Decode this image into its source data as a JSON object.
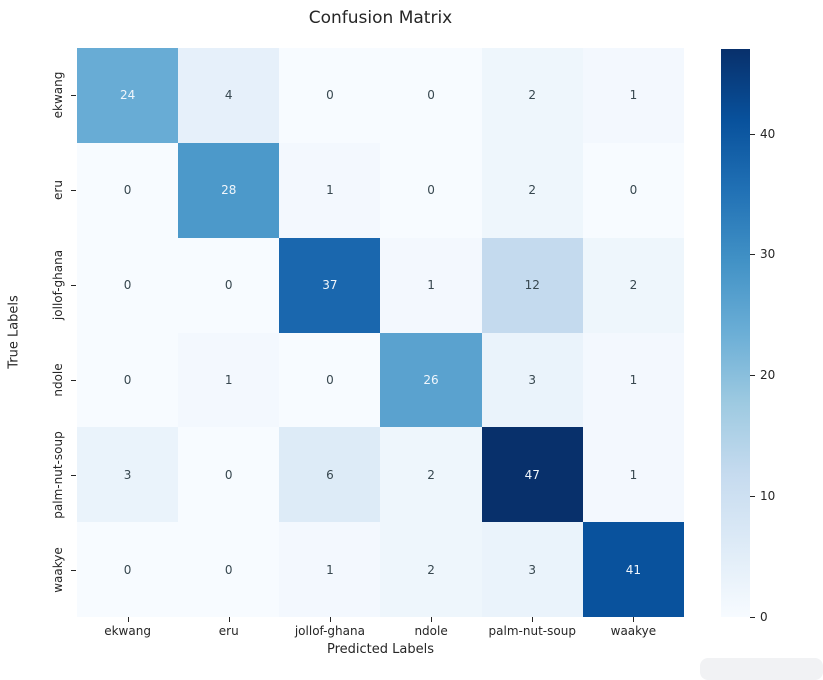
{
  "chart_data": {
    "type": "heatmap",
    "title": "Confusion Matrix",
    "xlabel": "Predicted Labels",
    "ylabel": "True Labels",
    "x_categories": [
      "ekwang",
      "eru",
      "jollof-ghana",
      "ndole",
      "palm-nut-soup",
      "waakye"
    ],
    "y_categories": [
      "ekwang",
      "eru",
      "jollof-ghana",
      "ndole",
      "palm-nut-soup",
      "waakye"
    ],
    "matrix": [
      [
        24,
        4,
        0,
        0,
        2,
        1
      ],
      [
        0,
        28,
        1,
        0,
        2,
        0
      ],
      [
        0,
        0,
        37,
        1,
        12,
        2
      ],
      [
        0,
        1,
        0,
        26,
        3,
        1
      ],
      [
        3,
        0,
        6,
        2,
        47,
        1
      ],
      [
        0,
        0,
        1,
        2,
        3,
        41
      ]
    ],
    "colormap": "Blues",
    "vmin": 0,
    "vmax": 47,
    "colorbar_ticks": [
      0,
      10,
      20,
      30,
      40
    ],
    "legend_position": "right",
    "grid": false,
    "colors": {
      "cmap_low": "#f7fbff",
      "cmap_high": "#08306b",
      "annot_dark": "#37474f",
      "annot_light": "#f0f6fc",
      "axis_text": "#262626"
    }
  }
}
